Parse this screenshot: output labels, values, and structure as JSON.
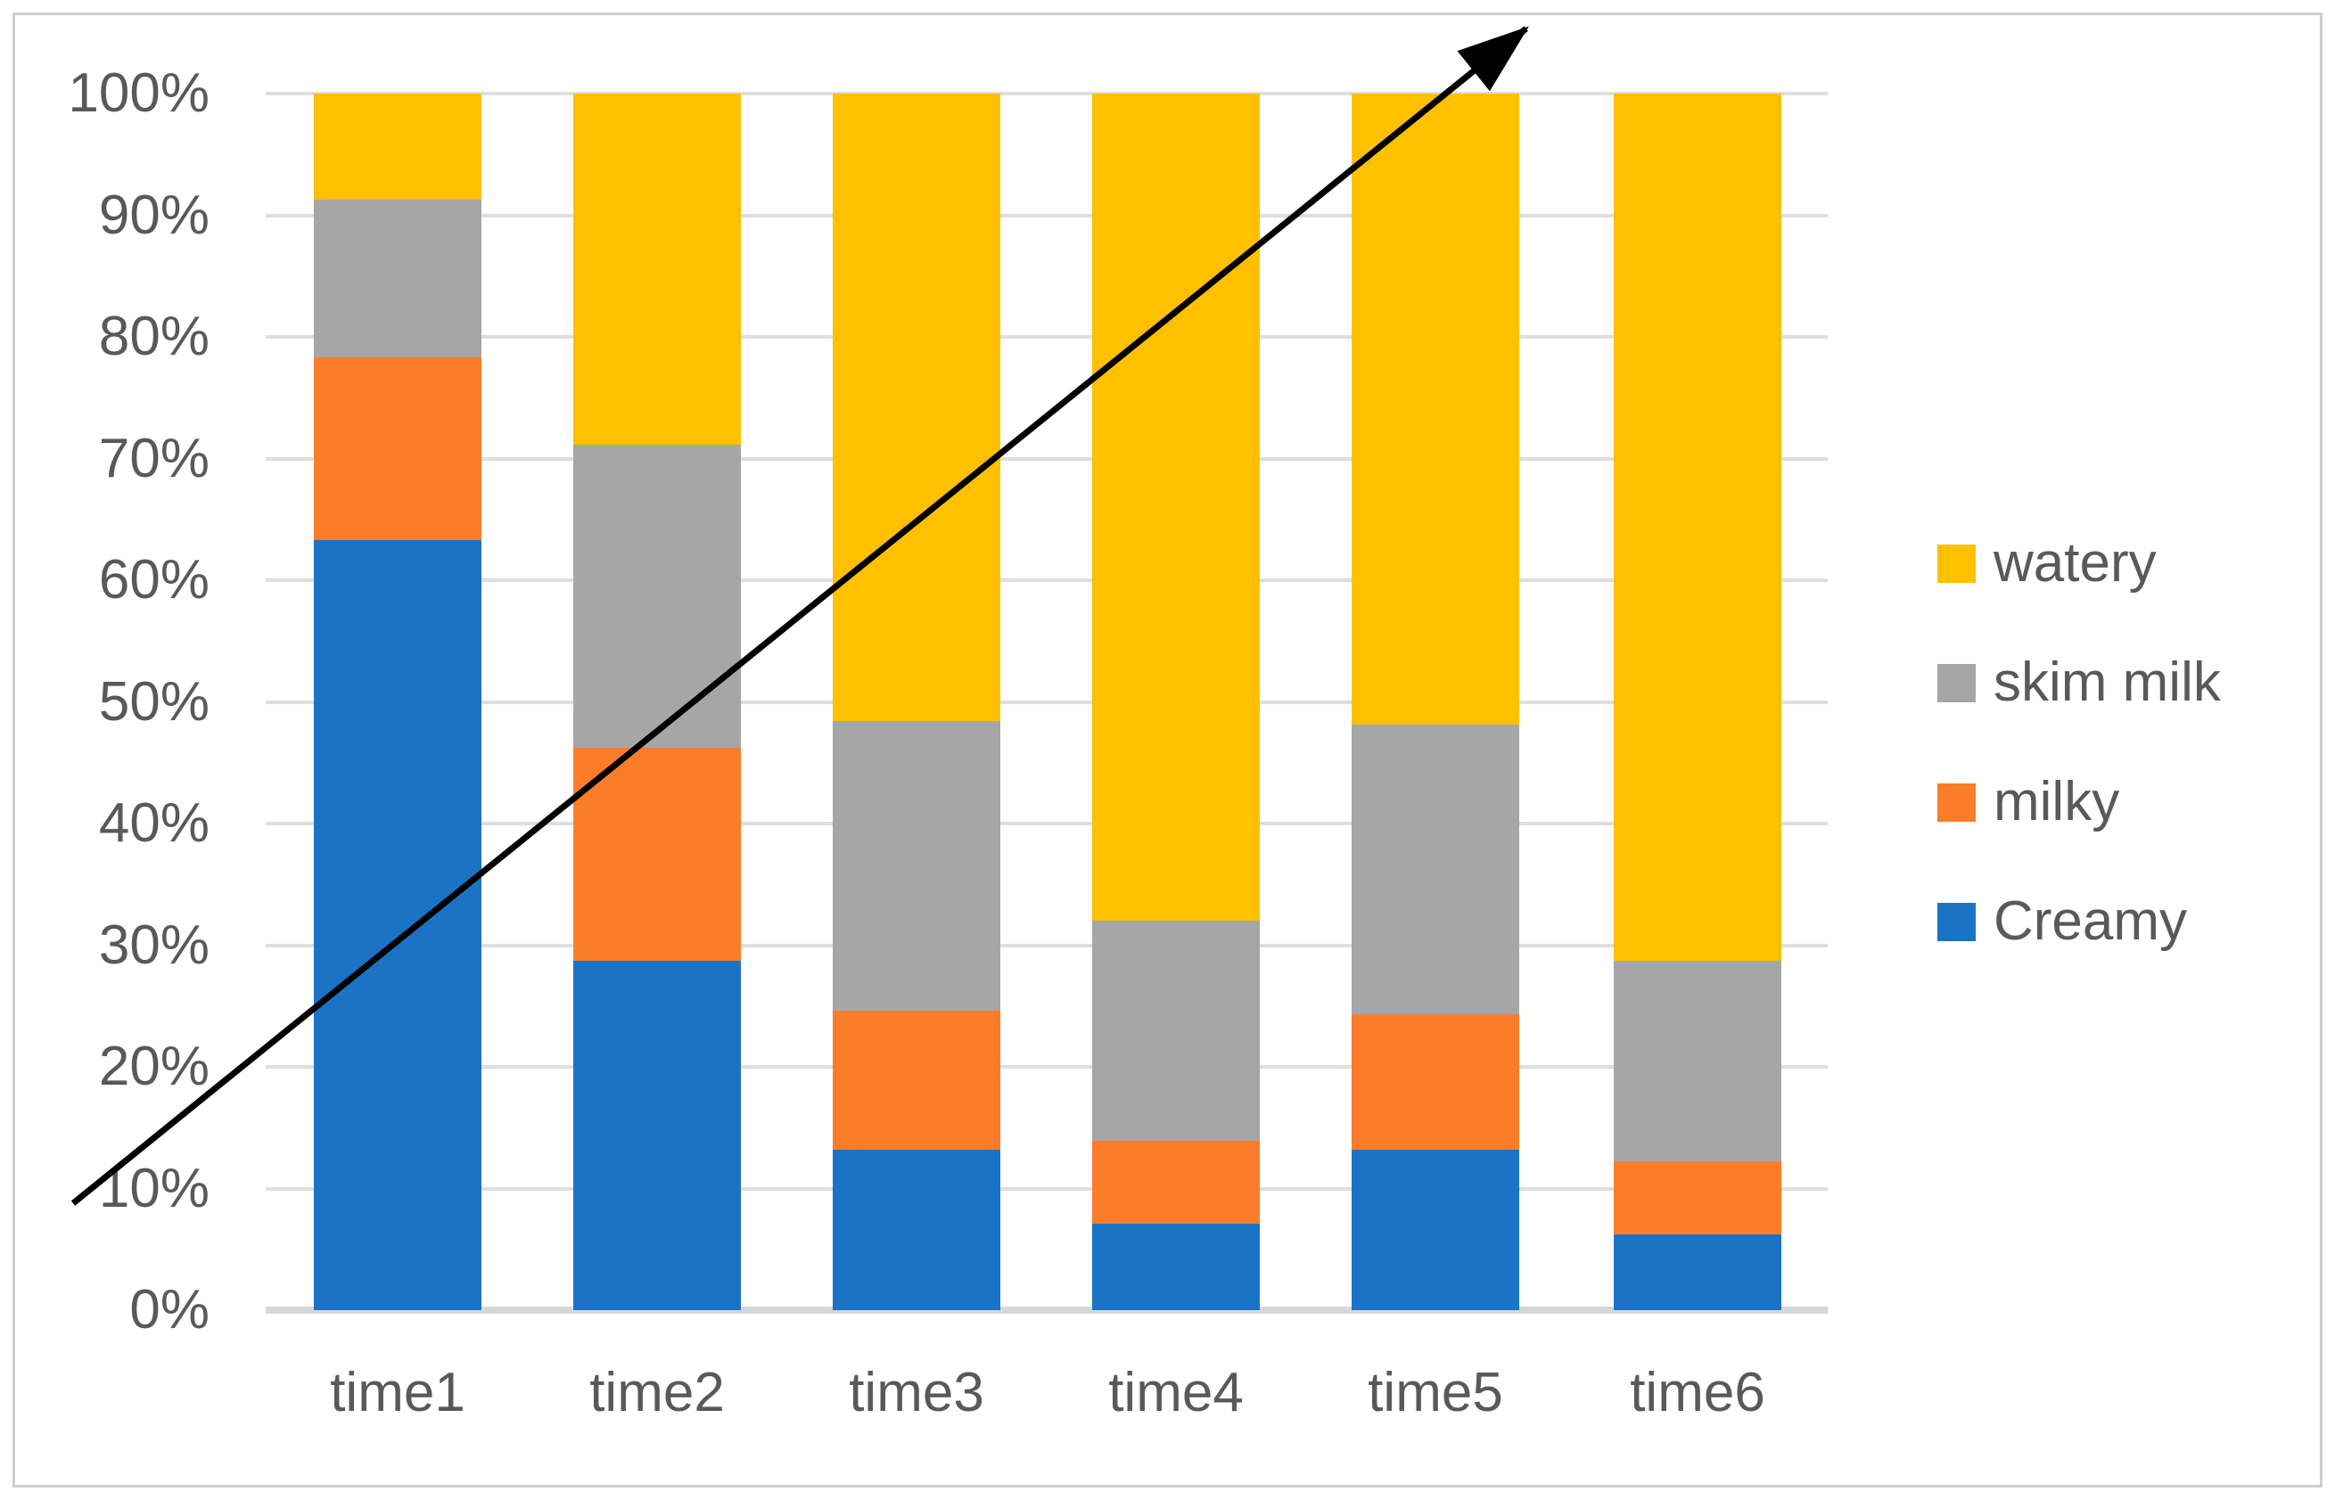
{
  "figure": {
    "kind": "100% stacked column chart",
    "title": "",
    "background": "#ffffff",
    "border_color": "#cfcfcf"
  },
  "y_axis": {
    "tick_labels": [
      "100%",
      "90%",
      "80%",
      "70%",
      "60%",
      "50%",
      "40%",
      "30%",
      "20%",
      "10%",
      "0%"
    ],
    "min": 0,
    "max": 100,
    "text_color": "#595959",
    "gridline_color": "#dedede"
  },
  "x_axis": {
    "categories": [
      "time1",
      "time2",
      "time3",
      "time4",
      "time5",
      "time6"
    ],
    "text_color": "#595959"
  },
  "legend": {
    "position": "right",
    "entries": [
      {
        "label": "watery",
        "color": "#FFC000"
      },
      {
        "label": "skim milk",
        "color": "#A6A6A6"
      },
      {
        "label": "milky",
        "color": "#FB7D29"
      },
      {
        "label": "Creamy",
        "color": "#1B73C6"
      }
    ]
  },
  "chart_data": {
    "type": "bar",
    "stacked": true,
    "percent_stacked": true,
    "categories": [
      "time1",
      "time2",
      "time3",
      "time4",
      "time5",
      "time6"
    ],
    "series": [
      {
        "name": "Creamy",
        "color": "#1B73C6",
        "values": [
          63.3,
          28.7,
          13.2,
          7.1,
          13.2,
          6.2
        ]
      },
      {
        "name": "milky",
        "color": "#FB7D29",
        "values": [
          15.0,
          17.5,
          11.4,
          6.8,
          11.1,
          6.0
        ]
      },
      {
        "name": "skim milk",
        "color": "#A6A6A6",
        "values": [
          13.0,
          24.9,
          23.8,
          18.1,
          23.8,
          16.5
        ]
      },
      {
        "name": "watery",
        "color": "#FFC000",
        "values": [
          8.7,
          28.9,
          51.6,
          68.0,
          51.9,
          71.3
        ]
      }
    ],
    "title": "",
    "xlabel": "",
    "ylabel": "",
    "ylim": [
      0,
      100
    ],
    "grid": true,
    "legend_position": "right",
    "annotations": [
      {
        "type": "arrow",
        "color": "#000000",
        "from": {
          "x_frac": 0.0313,
          "y_frac": 0.8022
        },
        "to": {
          "x_frac": 0.6536,
          "y_frac": 0.019
        }
      }
    ]
  }
}
